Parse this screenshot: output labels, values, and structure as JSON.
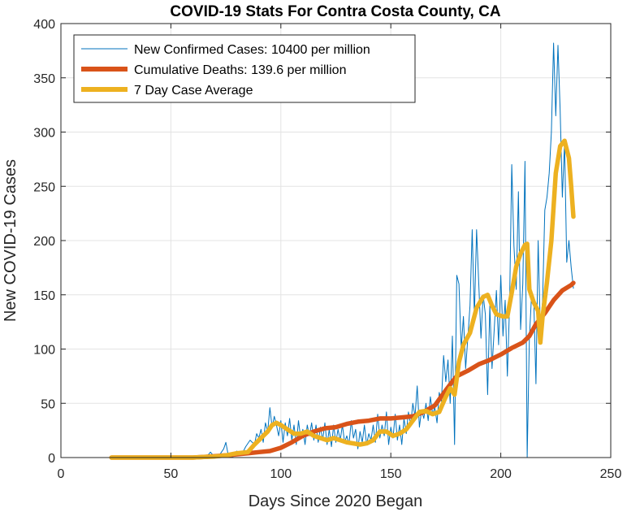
{
  "chart_data": {
    "type": "line",
    "title": "COVID-19 Stats For Contra Costa County, CA",
    "xlabel": "Days Since 2020 Began",
    "ylabel": "New COVID-19 Cases",
    "xlim": [
      0,
      250
    ],
    "ylim": [
      0,
      400
    ],
    "x_ticks": [
      0,
      50,
      100,
      150,
      200,
      250
    ],
    "y_ticks": [
      0,
      50,
      100,
      150,
      200,
      250,
      300,
      350,
      400
    ],
    "grid": true,
    "legend_position": "top-left",
    "series": [
      {
        "name": "New Confirmed Cases: 10400 per million",
        "color": "#0072BD",
        "line_width": "thin",
        "points": [
          [
            23,
            0
          ],
          [
            30,
            0
          ],
          [
            40,
            0
          ],
          [
            50,
            0
          ],
          [
            60,
            0
          ],
          [
            66,
            0
          ],
          [
            68,
            5
          ],
          [
            70,
            0
          ],
          [
            72,
            2
          ],
          [
            74,
            8
          ],
          [
            75,
            14
          ],
          [
            76,
            3
          ],
          [
            78,
            0
          ],
          [
            80,
            6
          ],
          [
            82,
            2
          ],
          [
            84,
            10
          ],
          [
            86,
            16
          ],
          [
            88,
            12
          ],
          [
            89,
            22
          ],
          [
            90,
            18
          ],
          [
            91,
            26
          ],
          [
            92,
            14
          ],
          [
            93,
            32
          ],
          [
            94,
            24
          ],
          [
            95,
            46
          ],
          [
            96,
            28
          ],
          [
            97,
            38
          ],
          [
            98,
            30
          ],
          [
            99,
            20
          ],
          [
            100,
            34
          ],
          [
            101,
            14
          ],
          [
            102,
            32
          ],
          [
            103,
            20
          ],
          [
            104,
            36
          ],
          [
            105,
            16
          ],
          [
            106,
            30
          ],
          [
            107,
            12
          ],
          [
            108,
            34
          ],
          [
            109,
            18
          ],
          [
            110,
            26
          ],
          [
            111,
            12
          ],
          [
            112,
            30
          ],
          [
            113,
            20
          ],
          [
            114,
            32
          ],
          [
            115,
            16
          ],
          [
            116,
            30
          ],
          [
            117,
            14
          ],
          [
            118,
            28
          ],
          [
            119,
            16
          ],
          [
            120,
            32
          ],
          [
            121,
            12
          ],
          [
            122,
            26
          ],
          [
            123,
            10
          ],
          [
            124,
            30
          ],
          [
            125,
            14
          ],
          [
            126,
            26
          ],
          [
            127,
            16
          ],
          [
            128,
            30
          ],
          [
            129,
            14
          ],
          [
            130,
            20
          ],
          [
            131,
            12
          ],
          [
            132,
            34
          ],
          [
            133,
            18
          ],
          [
            134,
            26
          ],
          [
            135,
            8
          ],
          [
            136,
            24
          ],
          [
            137,
            14
          ],
          [
            138,
            30
          ],
          [
            139,
            12
          ],
          [
            140,
            22
          ],
          [
            141,
            16
          ],
          [
            142,
            30
          ],
          [
            143,
            14
          ],
          [
            144,
            40
          ],
          [
            145,
            18
          ],
          [
            146,
            30
          ],
          [
            147,
            20
          ],
          [
            148,
            42
          ],
          [
            149,
            12
          ],
          [
            150,
            28
          ],
          [
            151,
            18
          ],
          [
            152,
            40
          ],
          [
            153,
            16
          ],
          [
            154,
            30
          ],
          [
            155,
            12
          ],
          [
            156,
            36
          ],
          [
            157,
            22
          ],
          [
            158,
            42
          ],
          [
            159,
            30
          ],
          [
            160,
            50
          ],
          [
            161,
            38
          ],
          [
            162,
            66
          ],
          [
            163,
            28
          ],
          [
            164,
            44
          ],
          [
            165,
            36
          ],
          [
            166,
            50
          ],
          [
            167,
            34
          ],
          [
            168,
            56
          ],
          [
            169,
            40
          ],
          [
            170,
            46
          ],
          [
            171,
            32
          ],
          [
            172,
            60
          ],
          [
            173,
            52
          ],
          [
            174,
            94
          ],
          [
            175,
            70
          ],
          [
            176,
            90
          ],
          [
            177,
            50
          ],
          [
            178,
            112
          ],
          [
            179,
            12
          ],
          [
            180,
            168
          ],
          [
            181,
            160
          ],
          [
            182,
            100
          ],
          [
            183,
            130
          ],
          [
            184,
            82
          ],
          [
            185,
            110
          ],
          [
            186,
            140
          ],
          [
            187,
            210
          ],
          [
            188,
            130
          ],
          [
            189,
            210
          ],
          [
            190,
            160
          ],
          [
            191,
            110
          ],
          [
            192,
            150
          ],
          [
            193,
            132
          ],
          [
            194,
            58
          ],
          [
            195,
            140
          ],
          [
            196,
            82
          ],
          [
            197,
            118
          ],
          [
            198,
            154
          ],
          [
            199,
            104
          ],
          [
            200,
            168
          ],
          [
            201,
            112
          ],
          [
            202,
            145
          ],
          [
            203,
            75
          ],
          [
            204,
            140
          ],
          [
            205,
            270
          ],
          [
            206,
            195
          ],
          [
            207,
            155
          ],
          [
            208,
            245
          ],
          [
            209,
            118
          ],
          [
            210,
            160
          ],
          [
            211,
            273
          ],
          [
            212,
            0
          ],
          [
            213,
            110
          ],
          [
            214,
            150
          ],
          [
            215,
            145
          ],
          [
            216,
            68
          ],
          [
            217,
            200
          ],
          [
            218,
            118
          ],
          [
            219,
            145
          ],
          [
            220,
            228
          ],
          [
            221,
            240
          ],
          [
            222,
            262
          ],
          [
            223,
            300
          ],
          [
            224,
            382
          ],
          [
            225,
            315
          ],
          [
            226,
            380
          ],
          [
            227,
            320
          ],
          [
            228,
            240
          ],
          [
            229,
            290
          ],
          [
            230,
            180
          ],
          [
            231,
            200
          ],
          [
            232,
            175
          ],
          [
            233,
            156
          ]
        ]
      },
      {
        "name": "Cumulative Deaths: 139.6 per million",
        "color": "#D95319",
        "line_width": "thick",
        "points": [
          [
            23,
            0
          ],
          [
            60,
            0
          ],
          [
            68,
            1
          ],
          [
            75,
            2
          ],
          [
            80,
            3
          ],
          [
            85,
            4
          ],
          [
            90,
            5
          ],
          [
            95,
            6
          ],
          [
            100,
            9
          ],
          [
            105,
            14
          ],
          [
            110,
            20
          ],
          [
            115,
            24
          ],
          [
            120,
            27
          ],
          [
            125,
            28
          ],
          [
            130,
            31
          ],
          [
            135,
            33
          ],
          [
            140,
            34
          ],
          [
            145,
            36
          ],
          [
            150,
            36
          ],
          [
            155,
            37
          ],
          [
            160,
            38
          ],
          [
            165,
            42
          ],
          [
            170,
            48
          ],
          [
            175,
            62
          ],
          [
            178,
            70
          ],
          [
            180,
            75
          ],
          [
            185,
            80
          ],
          [
            190,
            86
          ],
          [
            195,
            90
          ],
          [
            200,
            95
          ],
          [
            205,
            101
          ],
          [
            210,
            106
          ],
          [
            213,
            112
          ],
          [
            216,
            123
          ],
          [
            220,
            133
          ],
          [
            224,
            145
          ],
          [
            228,
            154
          ],
          [
            232,
            159
          ],
          [
            233,
            161
          ]
        ]
      },
      {
        "name": "7 Day Case Average",
        "color": "#EDB120",
        "line_width": "thick",
        "points": [
          [
            23,
            0
          ],
          [
            60,
            0
          ],
          [
            70,
            1
          ],
          [
            75,
            2
          ],
          [
            80,
            4
          ],
          [
            85,
            5
          ],
          [
            88,
            12
          ],
          [
            91,
            18
          ],
          [
            94,
            24
          ],
          [
            96,
            30
          ],
          [
            98,
            32
          ],
          [
            100,
            30
          ],
          [
            103,
            26
          ],
          [
            106,
            22
          ],
          [
            109,
            22
          ],
          [
            112,
            24
          ],
          [
            115,
            20
          ],
          [
            118,
            18
          ],
          [
            121,
            16
          ],
          [
            124,
            18
          ],
          [
            127,
            16
          ],
          [
            130,
            14
          ],
          [
            133,
            13
          ],
          [
            136,
            12
          ],
          [
            139,
            13
          ],
          [
            142,
            16
          ],
          [
            145,
            24
          ],
          [
            148,
            24
          ],
          [
            151,
            20
          ],
          [
            154,
            22
          ],
          [
            157,
            26
          ],
          [
            160,
            34
          ],
          [
            163,
            42
          ],
          [
            166,
            43
          ],
          [
            169,
            40
          ],
          [
            172,
            42
          ],
          [
            175,
            56
          ],
          [
            177,
            64
          ],
          [
            179,
            58
          ],
          [
            181,
            88
          ],
          [
            183,
            104
          ],
          [
            186,
            115
          ],
          [
            189,
            138
          ],
          [
            192,
            148
          ],
          [
            194,
            150
          ],
          [
            196,
            140
          ],
          [
            198,
            132
          ],
          [
            201,
            130
          ],
          [
            203,
            130
          ],
          [
            205,
            152
          ],
          [
            207,
            176
          ],
          [
            209,
            188
          ],
          [
            211,
            196
          ],
          [
            212,
            197
          ],
          [
            213,
            155
          ],
          [
            215,
            143
          ],
          [
            217,
            135
          ],
          [
            218,
            106
          ],
          [
            219,
            130
          ],
          [
            221,
            162
          ],
          [
            223,
            200
          ],
          [
            225,
            262
          ],
          [
            227,
            287
          ],
          [
            229,
            292
          ],
          [
            231,
            276
          ],
          [
            232,
            250
          ],
          [
            233,
            222
          ]
        ]
      }
    ]
  }
}
